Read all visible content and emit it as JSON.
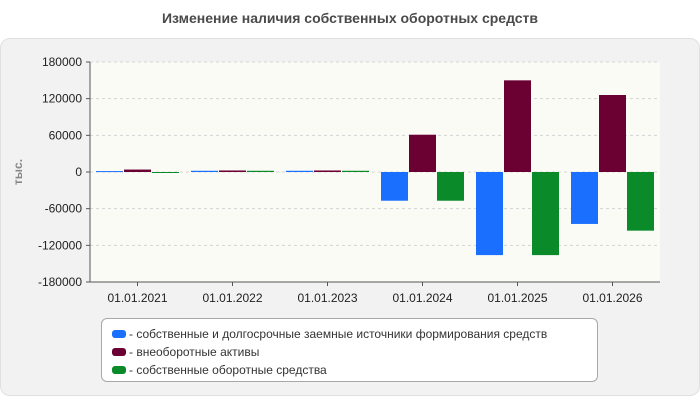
{
  "chart_data": {
    "type": "bar",
    "title": "Изменение наличия собственных оборотных средств",
    "ylabel": "тыс.",
    "xlabel": "",
    "categories": [
      "01.01.2021",
      "01.01.2022",
      "01.01.2023",
      "01.01.2024",
      "01.01.2025",
      "01.01.2026"
    ],
    "series": [
      {
        "name": "- собственные и долгосрочные заемные источники формирования средств",
        "color": "#1a6fff",
        "values": [
          1500,
          2000,
          2000,
          -47000,
          -136000,
          -85000
        ]
      },
      {
        "name": "- внеоборотные активы",
        "color": "#6b0033",
        "values": [
          4000,
          2500,
          2500,
          61000,
          150000,
          126000
        ]
      },
      {
        "name": "- собственные оборотные средства",
        "color": "#0b8a2a",
        "values": [
          -1500,
          2000,
          2000,
          -47000,
          -136000,
          -96000
        ]
      }
    ],
    "ylim": [
      -180000,
      180000
    ],
    "yticks": [
      180000,
      120000,
      60000,
      0,
      -60000,
      -120000,
      -180000
    ],
    "yticklabels": [
      "180000",
      "120000",
      "60000",
      "0",
      "-60000",
      "-120000",
      "-180000"
    ],
    "grid": true,
    "legend_position": "bottom"
  }
}
